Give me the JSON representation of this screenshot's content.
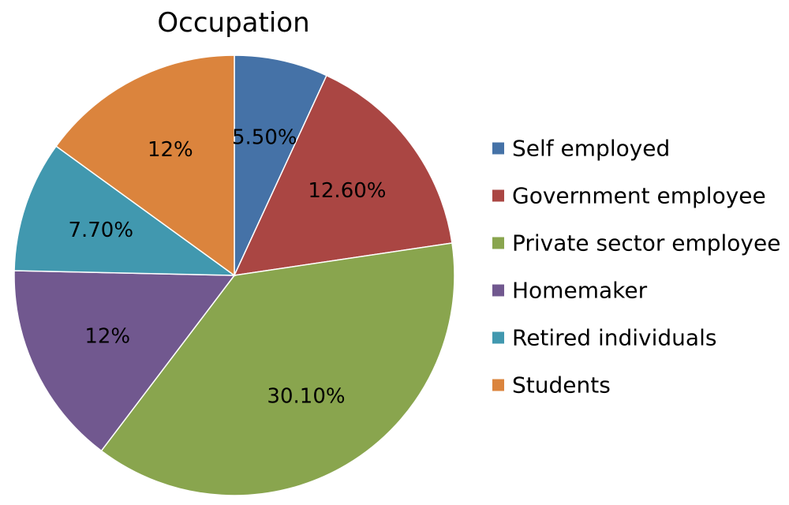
{
  "chart_data": {
    "type": "pie",
    "title": "Occupation",
    "labels": [
      "Self employed",
      "Government employee",
      "Private sector employee",
      "Homemaker",
      "Retired individuals",
      "Students"
    ],
    "values": [
      5.5,
      12.6,
      30.1,
      12,
      7.7,
      12
    ],
    "data_labels": [
      "5.50%",
      "12.60%",
      "30.10%",
      "12%",
      "7.70%",
      "12%"
    ],
    "colors": [
      "#4572A7",
      "#AA4643",
      "#89A54E",
      "#71588F",
      "#4198AF",
      "#DB843D"
    ],
    "legend_position": "right",
    "start": "top",
    "direction": "clockwise"
  }
}
